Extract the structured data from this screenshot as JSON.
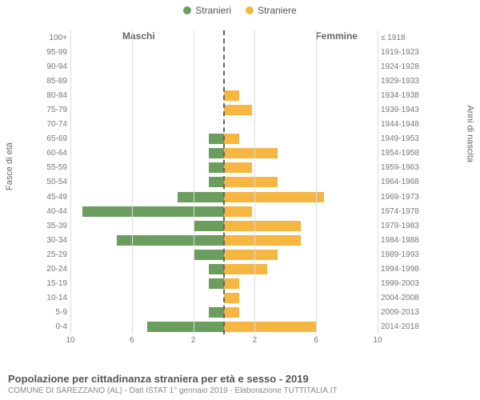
{
  "legend": {
    "male": "Stranieri",
    "female": "Straniere"
  },
  "colors": {
    "male": "#6b9e5e",
    "female": "#f5b642",
    "grid": "#dddddd",
    "center": "#666666",
    "bg": "#ffffff"
  },
  "side_titles": {
    "left": "Maschi",
    "right": "Femmine"
  },
  "axis_labels": {
    "left": "Fasce di età",
    "right": "Anni di nascita"
  },
  "chart": {
    "type": "population-pyramid",
    "x_max": 10,
    "x_ticks_left": [
      10,
      6,
      2
    ],
    "x_ticks_right": [
      2,
      6,
      10
    ],
    "rows": [
      {
        "age": "100+",
        "birth": "≤ 1918",
        "m": 0,
        "f": 0
      },
      {
        "age": "95-99",
        "birth": "1919-1923",
        "m": 0,
        "f": 0
      },
      {
        "age": "90-94",
        "birth": "1924-1928",
        "m": 0,
        "f": 0
      },
      {
        "age": "85-89",
        "birth": "1929-1933",
        "m": 0,
        "f": 0
      },
      {
        "age": "80-84",
        "birth": "1934-1938",
        "m": 0,
        "f": 1.0
      },
      {
        "age": "75-79",
        "birth": "1939-1943",
        "m": 0,
        "f": 1.8
      },
      {
        "age": "70-74",
        "birth": "1944-1948",
        "m": 0,
        "f": 0
      },
      {
        "age": "65-69",
        "birth": "1949-1953",
        "m": 1.0,
        "f": 1.0
      },
      {
        "age": "60-64",
        "birth": "1954-1958",
        "m": 1.0,
        "f": 3.5
      },
      {
        "age": "55-59",
        "birth": "1959-1963",
        "m": 1.0,
        "f": 1.8
      },
      {
        "age": "50-54",
        "birth": "1964-1968",
        "m": 1.0,
        "f": 3.5
      },
      {
        "age": "45-49",
        "birth": "1969-1973",
        "m": 3.0,
        "f": 6.5
      },
      {
        "age": "40-44",
        "birth": "1974-1978",
        "m": 9.2,
        "f": 1.8
      },
      {
        "age": "35-39",
        "birth": "1979-1983",
        "m": 2.0,
        "f": 5.0
      },
      {
        "age": "30-34",
        "birth": "1984-1988",
        "m": 7.0,
        "f": 5.0
      },
      {
        "age": "25-29",
        "birth": "1989-1993",
        "m": 2.0,
        "f": 3.5
      },
      {
        "age": "20-24",
        "birth": "1994-1998",
        "m": 1.0,
        "f": 2.8
      },
      {
        "age": "15-19",
        "birth": "1999-2003",
        "m": 1.0,
        "f": 1.0
      },
      {
        "age": "10-14",
        "birth": "2004-2008",
        "m": 0,
        "f": 1.0
      },
      {
        "age": "5-9",
        "birth": "2009-2013",
        "m": 1.0,
        "f": 1.0
      },
      {
        "age": "0-4",
        "birth": "2014-2018",
        "m": 5.0,
        "f": 6.0
      }
    ]
  },
  "footer": {
    "title": "Popolazione per cittadinanza straniera per età e sesso - 2019",
    "subtitle": "COMUNE DI SAREZZANO (AL) - Dati ISTAT 1° gennaio 2019 - Elaborazione TUTTITALIA.IT"
  }
}
